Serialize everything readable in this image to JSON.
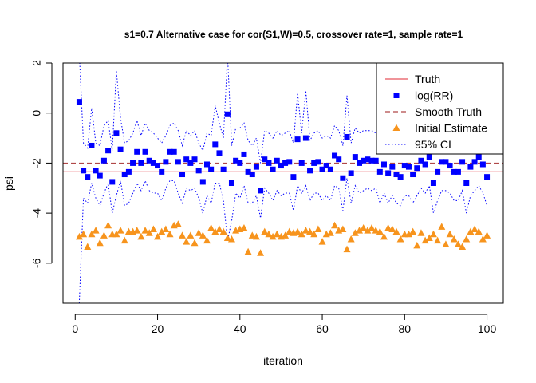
{
  "chart_data": {
    "type": "scatter",
    "title": "s1=0.7 Alternative case for cor(S1,W)=0.5, crossover rate=1, sample rate=1",
    "xlabel": "iteration",
    "ylabel": "psi",
    "xlim": [
      -2.96,
      103.96
    ],
    "ylim": [
      -7.6,
      2.0
    ],
    "xticks": [
      "0",
      "20",
      "40",
      "60",
      "80",
      "100"
    ],
    "yticks": [
      "-6",
      "-4",
      "-2",
      "0",
      "2"
    ],
    "legend_position": "top-right",
    "colors": {
      "truth": "#e8545c",
      "log_rr": "#0000ff",
      "smooth_truth": "#b04848",
      "initial_estimate": "#f7941d",
      "ci": "#0000ff"
    },
    "truth": -2.35,
    "smooth_truth": -2.0,
    "legend": [
      {
        "label": "Truth",
        "kind": "solid-line",
        "color": "#e8545c"
      },
      {
        "label": "log(RR)",
        "kind": "square",
        "color": "#0000ff"
      },
      {
        "label": "Smooth Truth",
        "kind": "dashed-line",
        "color": "#b04848"
      },
      {
        "label": "Initial Estimate",
        "kind": "triangle",
        "color": "#f7941d"
      },
      {
        "label": "95% CI",
        "kind": "dotted-line",
        "color": "#0000ff"
      }
    ],
    "series": [
      {
        "name": "log(RR)",
        "x": [
          1,
          2,
          3,
          4,
          5,
          6,
          7,
          8,
          9,
          10,
          11,
          12,
          13,
          14,
          15,
          16,
          17,
          18,
          19,
          20,
          21,
          22,
          23,
          24,
          25,
          26,
          27,
          28,
          29,
          30,
          31,
          32,
          33,
          34,
          35,
          36,
          37,
          38,
          39,
          40,
          41,
          42,
          43,
          44,
          45,
          46,
          47,
          48,
          49,
          50,
          51,
          52,
          53,
          54,
          55,
          56,
          57,
          58,
          59,
          60,
          61,
          62,
          63,
          64,
          65,
          66,
          67,
          68,
          69,
          70,
          71,
          72,
          73,
          74,
          75,
          76,
          77,
          78,
          79,
          80,
          81,
          82,
          83,
          84,
          85,
          86,
          87,
          88,
          89,
          90,
          91,
          92,
          93,
          94,
          95,
          96,
          97,
          98,
          99,
          100
        ],
        "y": [
          0.45,
          -2.3,
          -2.55,
          -1.3,
          -2.3,
          -2.5,
          -1.9,
          -1.5,
          -2.75,
          -0.8,
          -1.45,
          -2.45,
          -2.35,
          -2.0,
          -1.55,
          -2.0,
          -1.55,
          -1.9,
          -2.0,
          -2.1,
          -2.35,
          -1.95,
          -1.55,
          -1.55,
          -1.95,
          -2.45,
          -1.85,
          -2.0,
          -1.85,
          -2.3,
          -2.75,
          -2.05,
          -2.25,
          -1.25,
          -1.6,
          -2.25,
          -0.05,
          -2.8,
          -1.9,
          -2.0,
          -1.65,
          -2.35,
          -2.45,
          -2.15,
          -3.1,
          -1.85,
          -2.0,
          -2.25,
          -1.9,
          -2.1,
          -2.0,
          -1.95,
          -2.55,
          -1.05,
          -2.0,
          -1.0,
          -2.3,
          -2.0,
          -1.95,
          -2.25,
          -2.1,
          -2.25,
          -1.7,
          -1.85,
          -2.6,
          -0.95,
          -2.4,
          -1.75,
          -2.0,
          -1.9,
          -1.85,
          -1.9,
          -1.9,
          -2.35,
          -2.05,
          -2.4,
          -2.15,
          -2.45,
          -2.55,
          -2.1,
          -2.15,
          -2.45,
          -2.2,
          -1.9,
          -2.05,
          -1.75,
          -2.8,
          -2.35,
          -1.95,
          -1.95,
          -2.1,
          -2.35,
          -2.35,
          -1.95,
          -2.8,
          -2.15,
          -1.95,
          -1.75,
          -2.05,
          -2.55
        ]
      },
      {
        "name": "Initial Estimate",
        "x": [
          1,
          2,
          3,
          4,
          5,
          6,
          7,
          8,
          9,
          10,
          11,
          12,
          13,
          14,
          15,
          16,
          17,
          18,
          19,
          20,
          21,
          22,
          23,
          24,
          25,
          26,
          27,
          28,
          29,
          30,
          31,
          32,
          33,
          34,
          35,
          36,
          37,
          38,
          39,
          40,
          41,
          42,
          43,
          44,
          45,
          46,
          47,
          48,
          49,
          50,
          51,
          52,
          53,
          54,
          55,
          56,
          57,
          58,
          59,
          60,
          61,
          62,
          63,
          64,
          65,
          66,
          67,
          68,
          69,
          70,
          71,
          72,
          73,
          74,
          75,
          76,
          77,
          78,
          79,
          80,
          81,
          82,
          83,
          84,
          85,
          86,
          87,
          88,
          89,
          90,
          91,
          92,
          93,
          94,
          95,
          96,
          97,
          98,
          99,
          100
        ],
        "y": [
          -4.95,
          -4.85,
          -5.35,
          -4.85,
          -4.7,
          -5.2,
          -4.9,
          -4.5,
          -4.85,
          -4.85,
          -4.7,
          -5.1,
          -4.75,
          -4.75,
          -4.7,
          -4.95,
          -4.7,
          -4.8,
          -4.65,
          -4.95,
          -4.75,
          -4.65,
          -4.85,
          -4.5,
          -4.45,
          -4.9,
          -5.15,
          -4.9,
          -5.2,
          -4.8,
          -4.9,
          -5.1,
          -4.6,
          -4.75,
          -4.65,
          -4.75,
          -5.0,
          -5.05,
          -4.7,
          -4.65,
          -4.6,
          -5.55,
          -4.9,
          -4.95,
          -5.6,
          -4.75,
          -4.85,
          -4.95,
          -4.85,
          -4.95,
          -4.9,
          -4.75,
          -4.8,
          -4.75,
          -4.85,
          -4.7,
          -4.75,
          -4.85,
          -4.65,
          -5.15,
          -4.85,
          -4.8,
          -4.5,
          -4.7,
          -4.65,
          -5.45,
          -5.05,
          -4.8,
          -4.7,
          -4.6,
          -4.7,
          -4.6,
          -4.7,
          -4.75,
          -4.95,
          -4.6,
          -4.65,
          -4.75,
          -5.05,
          -4.85,
          -4.85,
          -4.75,
          -5.3,
          -4.8,
          -5.1,
          -5.0,
          -4.85,
          -5.1,
          -4.55,
          -5.25,
          -4.85,
          -5.05,
          -5.25,
          -5.35,
          -5.05,
          -4.75,
          -4.65,
          -4.75,
          -5.05,
          -4.9
        ]
      },
      {
        "name": "95% CI upper",
        "x": [
          1,
          2,
          3,
          4,
          5,
          6,
          7,
          8,
          9,
          10,
          11,
          12,
          13,
          14,
          15,
          16,
          17,
          18,
          19,
          20,
          21,
          22,
          23,
          24,
          25,
          26,
          27,
          28,
          29,
          30,
          31,
          32,
          33,
          34,
          35,
          36,
          37,
          38,
          39,
          40,
          41,
          42,
          43,
          44,
          45,
          46,
          47,
          48,
          49,
          50,
          51,
          52,
          53,
          54,
          55,
          56,
          57,
          58,
          59,
          60,
          61,
          62,
          63,
          64,
          65,
          66,
          67,
          68,
          69,
          70,
          71,
          72,
          73,
          74,
          75,
          76,
          77,
          78,
          79,
          80,
          81,
          82,
          83,
          84,
          85,
          86,
          87,
          88,
          89,
          90,
          91,
          92,
          93,
          94,
          95,
          96,
          97,
          98,
          99,
          100
        ],
        "y": [
          2.4,
          -1.2,
          -1.4,
          0.2,
          -1.2,
          -1.3,
          -0.5,
          -0.3,
          -1.5,
          1.7,
          -0.2,
          -1.2,
          -1.1,
          -0.8,
          -0.3,
          -0.9,
          -0.4,
          -0.7,
          -0.8,
          -1.0,
          -1.2,
          -0.9,
          -0.5,
          -0.4,
          -0.7,
          -1.3,
          -0.7,
          -0.9,
          -0.7,
          -1.2,
          -1.5,
          -0.8,
          -0.9,
          0.3,
          -0.4,
          -1.0,
          2.3,
          -1.3,
          -0.6,
          -0.6,
          -0.4,
          -1.1,
          -1.3,
          -1.0,
          -2.0,
          -0.7,
          -0.8,
          -1.0,
          -0.7,
          -0.9,
          -0.8,
          -0.7,
          -1.2,
          0.8,
          -0.8,
          0.9,
          -1.1,
          -0.8,
          -0.7,
          -1.0,
          -0.9,
          -1.0,
          -0.5,
          -0.7,
          -1.3,
          0.7,
          -1.2,
          -0.6,
          -0.8,
          -0.7,
          -0.7,
          -0.7,
          -0.8,
          -1.1,
          -0.9,
          -1.2,
          -1.0,
          -1.3,
          -1.4,
          -0.9,
          -1.0,
          -1.3,
          -1.1,
          -0.8,
          -0.9,
          -0.6,
          -1.6,
          -1.2,
          -0.8,
          -0.8,
          -1.0,
          -1.2,
          -1.2,
          -0.8,
          -1.6,
          -1.0,
          -0.8,
          -0.6,
          -0.9,
          -1.4
        ]
      },
      {
        "name": "95% CI lower",
        "x": [
          1,
          2,
          3,
          4,
          5,
          6,
          7,
          8,
          9,
          10,
          11,
          12,
          13,
          14,
          15,
          16,
          17,
          18,
          19,
          20,
          21,
          22,
          23,
          24,
          25,
          26,
          27,
          28,
          29,
          30,
          31,
          32,
          33,
          34,
          35,
          36,
          37,
          38,
          39,
          40,
          41,
          42,
          43,
          44,
          45,
          46,
          47,
          48,
          49,
          50,
          51,
          52,
          53,
          54,
          55,
          56,
          57,
          58,
          59,
          60,
          61,
          62,
          63,
          64,
          65,
          66,
          67,
          68,
          69,
          70,
          71,
          72,
          73,
          74,
          75,
          76,
          77,
          78,
          79,
          80,
          81,
          82,
          83,
          84,
          85,
          86,
          87,
          88,
          89,
          90,
          91,
          92,
          93,
          94,
          95,
          96,
          97,
          98,
          99,
          100
        ],
        "y": [
          -7.6,
          -3.4,
          -3.6,
          -2.8,
          -3.4,
          -3.7,
          -3.2,
          -2.8,
          -4.0,
          -3.3,
          -2.7,
          -3.7,
          -3.6,
          -3.2,
          -2.8,
          -3.1,
          -2.7,
          -3.1,
          -3.2,
          -3.2,
          -3.5,
          -3.0,
          -2.7,
          -2.7,
          -3.2,
          -3.6,
          -3.0,
          -3.1,
          -3.0,
          -3.4,
          -4.0,
          -3.3,
          -3.6,
          -2.8,
          -2.8,
          -3.5,
          -5.1,
          -4.3,
          -3.2,
          -3.4,
          -2.9,
          -3.6,
          -3.6,
          -3.3,
          -4.2,
          -3.0,
          -3.2,
          -3.5,
          -3.1,
          -3.3,
          -3.2,
          -3.2,
          -3.9,
          -2.9,
          -3.2,
          -2.9,
          -3.5,
          -3.2,
          -3.2,
          -3.5,
          -3.3,
          -3.5,
          -2.9,
          -3.0,
          -3.9,
          -2.6,
          -3.6,
          -2.9,
          -3.2,
          -3.1,
          -3.0,
          -3.1,
          -3.0,
          -3.6,
          -3.2,
          -3.6,
          -3.3,
          -3.6,
          -3.7,
          -3.3,
          -3.3,
          -3.6,
          -3.3,
          -3.0,
          -3.2,
          -2.9,
          -4.0,
          -3.5,
          -3.1,
          -3.1,
          -3.2,
          -3.5,
          -3.5,
          -3.1,
          -4.0,
          -3.3,
          -3.1,
          -2.9,
          -3.2,
          -3.7
        ]
      }
    ]
  }
}
